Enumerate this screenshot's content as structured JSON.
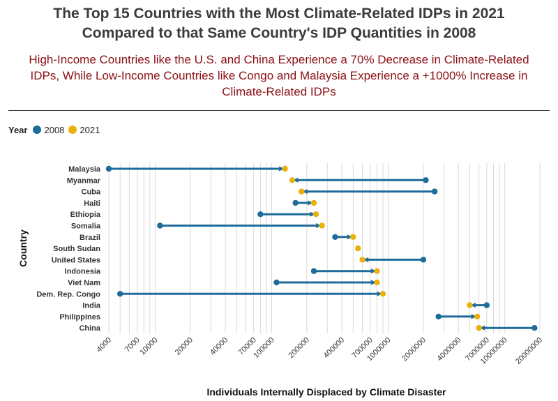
{
  "title_line1": "The Top 15 Countries with the Most Climate-Related IDPs in 2021",
  "title_line2": "Compared to that Same Country's IDP Quantities in 2008",
  "subtitle_line1": "High-Income Countries like the U.S. and China Experience a 70% Decrease in Climate-Related",
  "subtitle_line2": "IDPs, While Low-Income Countries like Congo and Malaysia Experience a +1000% Increase in",
  "subtitle_line3": "Climate-Related IDPs",
  "legend": {
    "title": "Year",
    "items": [
      {
        "label": "2008",
        "color": "#1f6b99"
      },
      {
        "label": "2021",
        "color": "#e8b10e"
      }
    ]
  },
  "chart_data": {
    "type": "dumbbell",
    "xscale": "log",
    "xlim": [
      4000,
      20000000
    ],
    "xlabel": "Individuals Internally Displaced by Climate Disaster",
    "ylabel": "Country",
    "xticks": [
      "4000",
      "7000",
      "10000",
      "20000",
      "40000",
      "70000",
      "100000",
      "200000",
      "400000",
      "700000",
      "1000000",
      "2000000",
      "4000000",
      "7000000",
      "10000000",
      "20000000"
    ],
    "xtick_values": [
      4000,
      7000,
      10000,
      20000,
      40000,
      70000,
      100000,
      200000,
      400000,
      700000,
      1000000,
      2000000,
      4000000,
      7000000,
      10000000,
      20000000
    ],
    "series_names": [
      "2008",
      "2021"
    ],
    "rows": [
      {
        "country": "Malaysia",
        "y2008": 4000,
        "y2021": 130000
      },
      {
        "country": "Myanmar",
        "y2008": 2100000,
        "y2021": 150000
      },
      {
        "country": "Cuba",
        "y2008": 2500000,
        "y2021": 180000
      },
      {
        "country": "Haiti",
        "y2008": 160000,
        "y2021": 230000
      },
      {
        "country": "Ethiopia",
        "y2008": 80000,
        "y2021": 240000
      },
      {
        "country": "Somalia",
        "y2008": 11000,
        "y2021": 270000
      },
      {
        "country": "Brazil",
        "y2008": 350000,
        "y2021": 500000
      },
      {
        "country": "South Sudan",
        "y2008": null,
        "y2021": 550000
      },
      {
        "country": "United States",
        "y2008": 2000000,
        "y2021": 600000
      },
      {
        "country": "Indonesia",
        "y2008": 230000,
        "y2021": 800000
      },
      {
        "country": "Viet Nam",
        "y2008": 110000,
        "y2021": 800000
      },
      {
        "country": "Dem. Rep. Congo",
        "y2008": 5000,
        "y2021": 900000
      },
      {
        "country": "India",
        "y2008": 7000000,
        "y2021": 5000000
      },
      {
        "country": "Philippines",
        "y2008": 2700000,
        "y2021": 5800000
      },
      {
        "country": "China",
        "y2008": 18000000,
        "y2021": 6000000
      }
    ],
    "grid": "vertical"
  }
}
